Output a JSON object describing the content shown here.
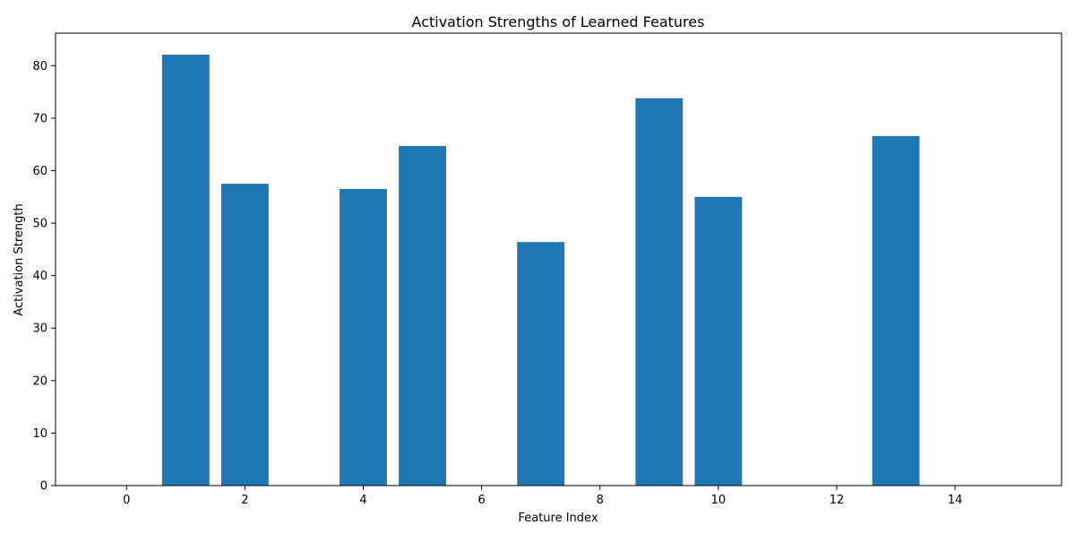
{
  "chart_data": {
    "type": "bar",
    "title": "Activation Strengths of Learned Features",
    "xlabel": "Feature Index",
    "ylabel": "Activation Strength",
    "x": [
      0,
      1,
      2,
      3,
      4,
      5,
      6,
      7,
      8,
      9,
      10,
      11,
      12,
      13,
      14,
      15
    ],
    "values": [
      0,
      82.1,
      57.5,
      0,
      56.5,
      64.7,
      0,
      46.4,
      0,
      73.8,
      55.0,
      0,
      0,
      66.6,
      0,
      0
    ],
    "xlim": [
      -1.2,
      15.8
    ],
    "ylim": [
      0,
      86.2
    ],
    "x_ticks": [
      "0",
      "2",
      "4",
      "6",
      "8",
      "10",
      "12",
      "14"
    ],
    "x_tick_values": [
      0,
      2,
      4,
      6,
      8,
      10,
      12,
      14
    ],
    "y_ticks": [
      "0",
      "10",
      "20",
      "30",
      "40",
      "50",
      "60",
      "70",
      "80"
    ],
    "y_tick_values": [
      0,
      10,
      20,
      30,
      40,
      50,
      60,
      70,
      80
    ],
    "bar_width": 0.8,
    "bar_color": "#1f77b4",
    "grid": false,
    "legend": false
  }
}
